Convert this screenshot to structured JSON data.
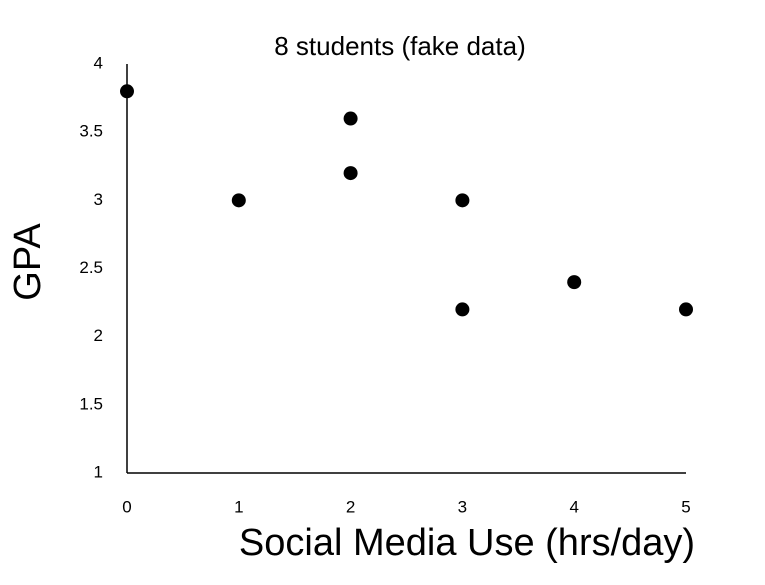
{
  "chart_data": {
    "type": "scatter",
    "title": "8 students (fake data)",
    "x_label": "Social Media Use (hrs/day)",
    "y_label": "GPA",
    "x": [
      0,
      1,
      2,
      2,
      3,
      3,
      4,
      5
    ],
    "values": [
      3.8,
      3.0,
      3.6,
      3.2,
      3.0,
      2.2,
      2.4,
      2.2
    ],
    "color": "#000000",
    "xlim": [
      0,
      5
    ],
    "xticks": [
      0,
      1,
      2,
      3,
      4,
      5
    ],
    "ylim": [
      1,
      4
    ],
    "yticks": [
      1,
      1.5,
      2,
      2.5,
      3,
      3.5,
      4
    ],
    "grid": false
  }
}
